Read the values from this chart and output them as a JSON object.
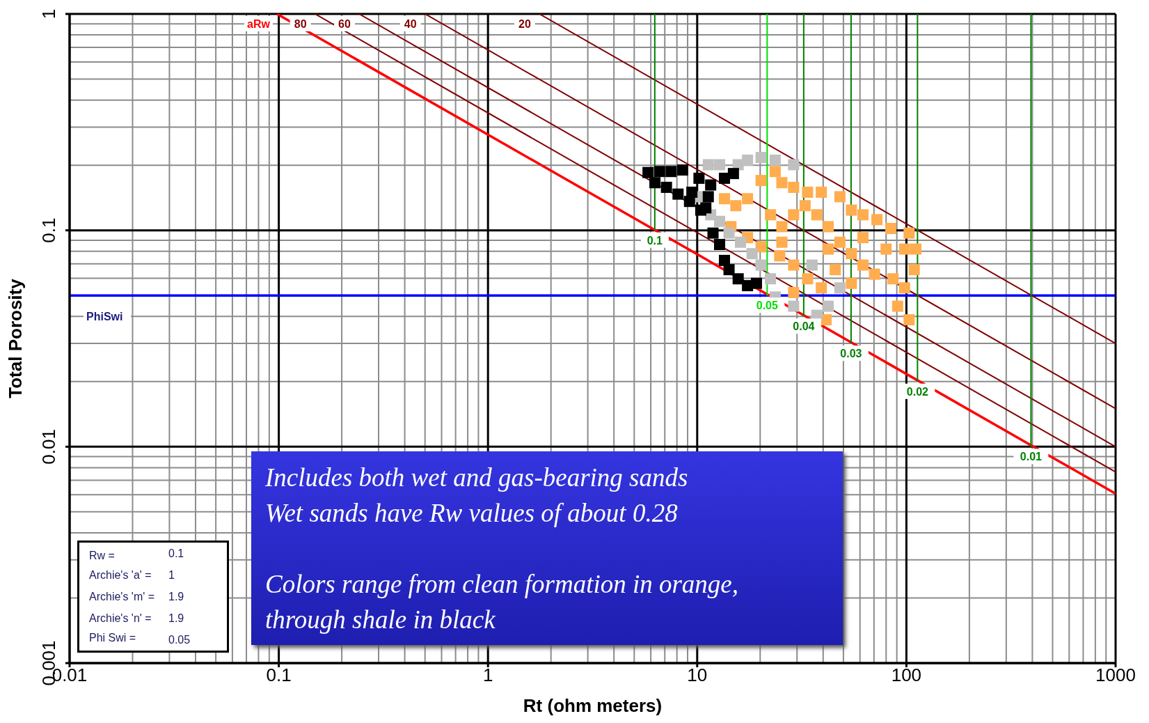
{
  "chart_data": {
    "type": "scatter",
    "xlabel": "Rt (ohm meters)",
    "ylabel": "Total Porosity",
    "log": "xy",
    "grid": true,
    "xlim": [
      0.01,
      1000
    ],
    "xticks": [
      0.01,
      0.1,
      1,
      10,
      100,
      1000
    ],
    "ylim": [
      0.001,
      1
    ],
    "yticks": [
      0.001,
      0.01,
      0.1,
      1
    ],
    "ref_lines": [
      {
        "axis": "y",
        "value": 0.05,
        "label": "PhiSwi",
        "color": "#0000ff"
      }
    ],
    "annotations": [
      "Rw = 0.1",
      "Archie's 'a' = 1",
      "Archie's 'm' = 1.9",
      "Archie's 'n' = 1.9",
      "Phi Swi = 0.05",
      "Includes both wet and gas-bearing sands\nWet sands have Rw values of about 0.28",
      "Colors range from clean formation in orange,\nthrough shale in black"
    ],
    "series": [
      {
        "marker": "square",
        "color": "#ffad4f",
        "x": [
          20.2,
          23.6,
          25.4,
          28.9,
          33.7,
          39.2,
          48.1,
          54.6,
          62.0,
          72.3,
          84.2,
          103,
          111,
          109,
          98.0,
          90.8,
          103,
          86.3,
          70.4,
          62.0,
          54.6,
          48.1,
          42.3,
          37.3,
          32.8,
          28.9,
          25.4,
          22.4,
          13.5,
          15.3,
          17.4,
          14.5,
          17.4,
          20.2,
          24.8,
          28.9,
          33.7,
          39.2,
          28.9,
          41.3,
          45.7,
          62.0,
          80.0,
          98.0,
          25.4,
          42.3,
          54.6
        ],
        "values": [
          0.17,
          0.187,
          0.166,
          0.158,
          0.15,
          0.15,
          0.143,
          0.124,
          0.118,
          0.112,
          0.102,
          0.0971,
          0.0819,
          0.0658,
          0.0542,
          0.0446,
          0.0386,
          0.0597,
          0.0627,
          0.0691,
          0.078,
          0.0881,
          0.104,
          0.118,
          0.13,
          0.118,
          0.104,
          0.118,
          0.14,
          0.13,
          0.14,
          0.104,
          0.0925,
          0.0839,
          0.0762,
          0.0691,
          0.0597,
          0.0542,
          0.0516,
          0.0386,
          0.0658,
          0.0925,
          0.0819,
          0.0819,
          0.0881,
          0.0819,
          0.0569
        ]
      },
      {
        "marker": "square",
        "color": "#c0c0c0",
        "x": [
          11.3,
          12.8,
          15.7,
          17.4,
          20.2,
          23.6,
          10.4,
          11.6,
          12.8,
          14.2,
          16.1,
          18.3,
          20.2,
          22.4,
          23.6,
          28.9,
          37.3,
          42.3,
          48.1,
          28.9,
          35.4
        ],
        "values": [
          0.201,
          0.201,
          0.201,
          0.211,
          0.217,
          0.211,
          0.143,
          0.118,
          0.11,
          0.0971,
          0.0881,
          0.078,
          0.0691,
          0.0597,
          0.0492,
          0.0446,
          0.0405,
          0.0446,
          0.0542,
          0.201,
          0.0691
        ]
      },
      {
        "marker": "square",
        "color": "#000000",
        "x": [
          5.82,
          6.61,
          7.5,
          8.52,
          6.28,
          7.13,
          8.1,
          9.19,
          10.2,
          10.4,
          11.6,
          13.5,
          14.9,
          11.9,
          12.8,
          13.5,
          14.2,
          15.7,
          17.4,
          19.2,
          11.0,
          9.43,
          11.3
        ],
        "values": [
          0.185,
          0.187,
          0.187,
          0.19,
          0.166,
          0.158,
          0.147,
          0.136,
          0.174,
          0.124,
          0.162,
          0.174,
          0.183,
          0.0971,
          0.086,
          0.0726,
          0.0658,
          0.0597,
          0.0555,
          0.0569,
          0.127,
          0.15,
          0.143
        ]
      },
      {
        "type": "line",
        "name": "aRw",
        "color": "#ff0000",
        "x": [
          0.098,
          1000
        ],
        "values": [
          1,
          0.00607
        ]
      },
      {
        "type": "line",
        "name": "80",
        "color": "#800000",
        "x": [
          0.149,
          1000
        ],
        "values": [
          1,
          0.00764
        ]
      },
      {
        "type": "line",
        "name": "60",
        "color": "#800000",
        "x": [
          0.242,
          1000
        ],
        "values": [
          1,
          0.01
        ]
      },
      {
        "type": "line",
        "name": "40",
        "color": "#800000",
        "x": [
          0.5,
          1000
        ],
        "values": [
          1,
          0.015
        ]
      },
      {
        "type": "line",
        "name": "20",
        "color": "#800000",
        "x": [
          1.76,
          1000
        ],
        "values": [
          1,
          0.03
        ]
      },
      {
        "type": "line",
        "name": "0.1",
        "color": "#008000",
        "x": [
          6.27,
          6.27
        ],
        "values": [
          1,
          0.1
        ]
      },
      {
        "type": "line",
        "name": "0.05",
        "color": "#00e000",
        "x": [
          21.6,
          21.6
        ],
        "values": [
          1,
          0.05
        ]
      },
      {
        "type": "line",
        "name": "0.04",
        "color": "#008000",
        "x": [
          32.3,
          32.3
        ],
        "values": [
          1,
          0.04
        ]
      },
      {
        "type": "line",
        "name": "0.03",
        "color": "#008000",
        "x": [
          54.4,
          54.4
        ],
        "values": [
          1,
          0.03
        ]
      },
      {
        "type": "line",
        "name": "0.02",
        "color": "#008000",
        "x": [
          113,
          113
        ],
        "values": [
          1,
          0.02
        ]
      },
      {
        "type": "line",
        "name": "0.01",
        "color": "#008000",
        "x": [
          394,
          394
        ],
        "values": [
          1,
          0.01
        ]
      }
    ]
  }
}
